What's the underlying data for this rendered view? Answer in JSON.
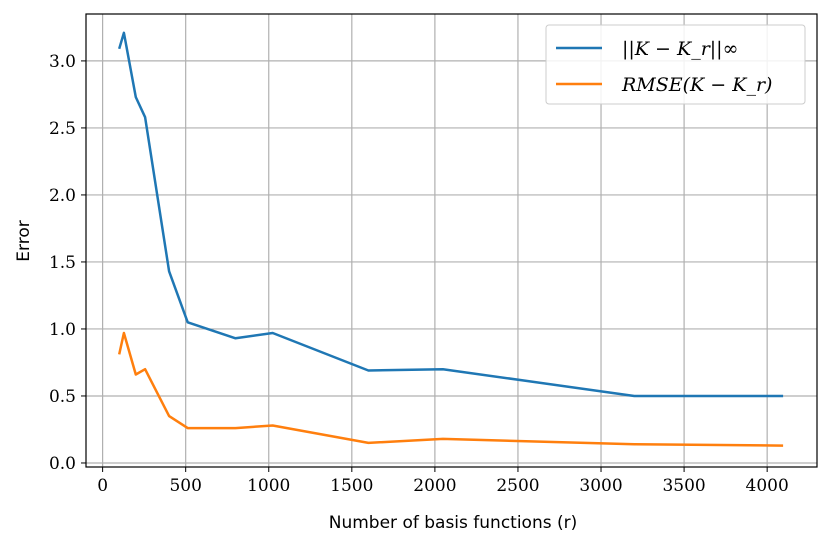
{
  "chart_data": {
    "type": "line",
    "xlabel": "Number of basis functions (r)",
    "ylabel": "Error",
    "xlim": [
      -100,
      4300
    ],
    "ylim": [
      -0.03,
      3.35
    ],
    "xticks": [
      0,
      500,
      1000,
      1500,
      2000,
      2500,
      3000,
      3500,
      4000
    ],
    "xtick_labels": [
      "0",
      "500",
      "1000",
      "1500",
      "2000",
      "2500",
      "3000",
      "3500",
      "4000"
    ],
    "yticks": [
      0.0,
      0.5,
      1.0,
      1.5,
      2.0,
      2.5,
      3.0
    ],
    "ytick_labels": [
      "0.0",
      "0.5",
      "1.0",
      "1.5",
      "2.0",
      "2.5",
      "3.0"
    ],
    "grid": true,
    "legend_position": "top-right",
    "series": [
      {
        "name": "||K − K_r||∞",
        "color": "#1f77b4",
        "x": [
          100,
          128,
          200,
          256,
          400,
          512,
          800,
          1024,
          1600,
          2048,
          3200,
          4096
        ],
        "y": [
          3.09,
          3.21,
          2.73,
          2.58,
          1.43,
          1.05,
          0.93,
          0.97,
          0.69,
          0.7,
          0.5,
          0.5
        ]
      },
      {
        "name": "RMSE(K − K_r)",
        "color": "#ff7f0e",
        "x": [
          100,
          128,
          200,
          256,
          400,
          512,
          800,
          1024,
          1600,
          2048,
          3200,
          4096
        ],
        "y": [
          0.81,
          0.97,
          0.66,
          0.7,
          0.35,
          0.26,
          0.26,
          0.28,
          0.15,
          0.18,
          0.14,
          0.13
        ]
      }
    ]
  }
}
